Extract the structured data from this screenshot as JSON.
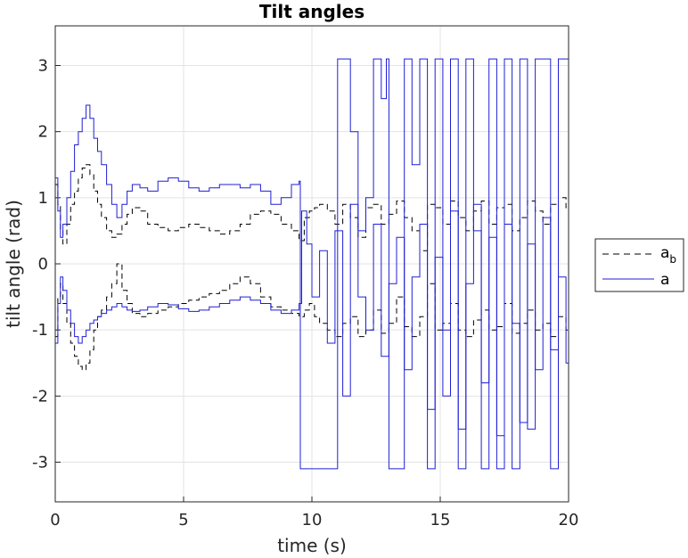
{
  "chart_data": {
    "type": "line",
    "title": "Tilt angles",
    "xlabel": "time (s)",
    "ylabel": "tilt angle (rad)",
    "xlim": [
      0,
      20
    ],
    "ylim": [
      -3.6,
      3.6
    ],
    "xticks": [
      0,
      5,
      10,
      15,
      20
    ],
    "yticks": [
      -3,
      -2,
      -1,
      0,
      1,
      2,
      3
    ],
    "xtick_labels": [
      "0",
      "5",
      "10",
      "15",
      "20"
    ],
    "ytick_labels": [
      "-3",
      "-2",
      "-1",
      "0",
      "1",
      "2",
      "3"
    ],
    "grid": true,
    "legend_position": "right",
    "legend": [
      {
        "label": "a",
        "subscript": "b",
        "style": "dashed",
        "color": "#000000"
      },
      {
        "label": "a",
        "subscript": "",
        "style": "solid",
        "color": "#1f1fd6"
      }
    ],
    "series": [
      {
        "name": "a_b (upper)",
        "style": "dashed",
        "color": "#000000",
        "x": [
          0,
          0.1,
          0.2,
          0.3,
          0.45,
          0.6,
          0.75,
          0.9,
          1.05,
          1.2,
          1.35,
          1.5,
          1.65,
          1.8,
          2.0,
          2.2,
          2.4,
          2.6,
          2.8,
          3.0,
          3.3,
          3.6,
          4.0,
          4.4,
          4.8,
          5.2,
          5.6,
          6.0,
          6.4,
          6.8,
          7.2,
          7.6,
          8.0,
          8.4,
          8.8,
          9.2,
          9.5,
          9.7,
          9.9,
          10.1,
          10.3,
          10.6,
          10.9,
          11.2,
          11.5,
          11.8,
          12.1,
          12.4,
          12.7,
          13.0,
          13.3,
          13.6,
          13.9,
          14.2,
          14.5,
          14.8,
          15.1,
          15.4,
          15.7,
          16.0,
          16.3,
          16.6,
          16.9,
          17.2,
          17.5,
          17.8,
          18.1,
          18.4,
          18.7,
          19.0,
          19.3,
          19.6,
          19.9,
          20.0
        ],
        "y": [
          1.2,
          0.9,
          0.5,
          0.3,
          0.6,
          0.9,
          1.1,
          1.3,
          1.45,
          1.5,
          1.35,
          1.1,
          0.9,
          0.7,
          0.5,
          0.4,
          0.45,
          0.6,
          0.75,
          0.85,
          0.8,
          0.6,
          0.55,
          0.5,
          0.55,
          0.6,
          0.55,
          0.5,
          0.45,
          0.5,
          0.6,
          0.75,
          0.8,
          0.75,
          0.6,
          0.5,
          0.35,
          0.7,
          0.8,
          0.85,
          0.9,
          0.8,
          0.6,
          0.9,
          0.7,
          0.4,
          0.85,
          0.9,
          0.6,
          0.75,
          0.95,
          0.7,
          0.5,
          0.2,
          0.9,
          0.85,
          0.6,
          0.95,
          0.7,
          0.5,
          0.8,
          0.95,
          0.6,
          0.85,
          0.9,
          0.5,
          0.7,
          0.95,
          0.8,
          0.6,
          0.9,
          1.0,
          0.85,
          0.9
        ]
      },
      {
        "name": "a_b (lower)",
        "style": "dashed",
        "color": "#000000",
        "x": [
          0,
          0.1,
          0.2,
          0.3,
          0.45,
          0.6,
          0.75,
          0.9,
          1.05,
          1.2,
          1.35,
          1.5,
          1.65,
          1.8,
          2.0,
          2.2,
          2.4,
          2.6,
          2.8,
          3.0,
          3.3,
          3.6,
          4.0,
          4.4,
          4.8,
          5.2,
          5.6,
          6.0,
          6.4,
          6.8,
          7.2,
          7.6,
          8.0,
          8.4,
          8.8,
          9.2,
          9.5,
          9.7,
          9.9,
          10.1,
          10.3,
          10.6,
          10.9,
          11.2,
          11.5,
          11.8,
          12.1,
          12.4,
          12.7,
          13.0,
          13.3,
          13.6,
          13.9,
          14.2,
          14.5,
          14.8,
          15.1,
          15.4,
          15.7,
          16.0,
          16.3,
          16.6,
          16.9,
          17.2,
          17.5,
          17.8,
          18.1,
          18.4,
          18.7,
          19.0,
          19.3,
          19.6,
          19.9,
          20.0
        ],
        "y": [
          -1.1,
          -0.5,
          -0.3,
          -0.6,
          -0.9,
          -1.2,
          -1.4,
          -1.55,
          -1.6,
          -1.5,
          -1.3,
          -1.0,
          -0.8,
          -0.7,
          -0.5,
          -0.3,
          0.0,
          -0.4,
          -0.6,
          -0.75,
          -0.8,
          -0.75,
          -0.7,
          -0.65,
          -0.6,
          -0.55,
          -0.5,
          -0.45,
          -0.4,
          -0.3,
          -0.2,
          -0.3,
          -0.5,
          -0.65,
          -0.7,
          -0.75,
          -0.8,
          -0.7,
          -0.6,
          -0.8,
          -0.9,
          -1.0,
          -1.1,
          -0.9,
          -0.8,
          -1.1,
          -1.0,
          -0.7,
          -1.05,
          -0.9,
          -0.5,
          -0.95,
          -1.1,
          -0.8,
          -0.3,
          -1.0,
          -0.9,
          -0.6,
          -1.0,
          -1.1,
          -0.85,
          -0.7,
          -1.0,
          -0.95,
          -0.6,
          -1.05,
          -0.9,
          -0.7,
          -1.0,
          -0.9,
          -1.1,
          -0.8,
          -1.0,
          -1.1
        ]
      },
      {
        "name": "a (upper)",
        "style": "solid",
        "color": "#1f1fd6",
        "x": [
          0,
          0.1,
          0.2,
          0.3,
          0.45,
          0.6,
          0.75,
          0.9,
          1.05,
          1.2,
          1.35,
          1.5,
          1.65,
          1.8,
          2.0,
          2.2,
          2.4,
          2.6,
          2.8,
          3.0,
          3.3,
          3.6,
          4.0,
          4.4,
          4.8,
          5.2,
          5.6,
          6.0,
          6.4,
          6.8,
          7.2,
          7.6,
          8.0,
          8.4,
          8.8,
          9.2,
          9.5,
          9.55,
          9.6,
          10.0,
          10.5,
          10.9,
          11.0,
          11.05,
          11.3,
          11.5,
          11.8,
          12.1,
          12.4,
          12.7,
          12.9,
          13.0,
          13.3,
          13.6,
          13.9,
          14.2,
          14.5,
          14.8,
          15.1,
          15.4,
          15.7,
          16.0,
          16.3,
          16.6,
          16.9,
          17.2,
          17.5,
          17.8,
          18.1,
          18.4,
          18.7,
          19.0,
          19.3,
          19.6,
          19.9,
          20.0
        ],
        "y": [
          1.3,
          0.8,
          0.4,
          0.6,
          1.0,
          1.4,
          1.8,
          2.0,
          2.2,
          2.4,
          2.2,
          1.9,
          1.7,
          1.5,
          1.2,
          0.9,
          0.7,
          0.9,
          1.1,
          1.2,
          1.15,
          1.1,
          1.25,
          1.3,
          1.25,
          1.15,
          1.1,
          1.15,
          1.2,
          1.2,
          1.15,
          1.2,
          1.1,
          0.9,
          1.0,
          1.2,
          1.25,
          -3.1,
          -3.1,
          -3.1,
          -3.1,
          -3.1,
          3.1,
          3.1,
          3.1,
          2.0,
          0.5,
          1.0,
          3.1,
          2.5,
          3.1,
          -3.1,
          -3.1,
          3.1,
          1.5,
          3.1,
          -3.1,
          3.1,
          -2.0,
          3.1,
          -3.1,
          3.1,
          0.5,
          -3.1,
          3.1,
          -3.1,
          3.1,
          -3.1,
          3.1,
          -2.5,
          3.1,
          3.1,
          -3.1,
          3.1,
          3.1,
          -3.1
        ]
      },
      {
        "name": "a (lower)",
        "style": "solid",
        "color": "#1f1fd6",
        "x": [
          0,
          0.1,
          0.2,
          0.3,
          0.45,
          0.6,
          0.75,
          0.9,
          1.05,
          1.2,
          1.35,
          1.5,
          1.65,
          1.8,
          2.0,
          2.2,
          2.4,
          2.6,
          2.8,
          3.0,
          3.3,
          3.6,
          4.0,
          4.4,
          4.8,
          5.2,
          5.6,
          6.0,
          6.4,
          6.8,
          7.2,
          7.6,
          8.0,
          8.4,
          8.8,
          9.2,
          9.5,
          9.6,
          9.8,
          10.0,
          10.3,
          10.6,
          10.9,
          11.2,
          11.5,
          11.8,
          12.1,
          12.4,
          12.7,
          13.0,
          13.3,
          13.6,
          13.9,
          14.2,
          14.5,
          14.8,
          15.1,
          15.4,
          15.7,
          16.0,
          16.3,
          16.6,
          16.9,
          17.2,
          17.5,
          17.8,
          18.1,
          18.4,
          18.7,
          19.0,
          19.3,
          19.6,
          19.9,
          20.0
        ],
        "y": [
          -1.2,
          -0.6,
          -0.2,
          -0.4,
          -0.7,
          -0.9,
          -1.1,
          -1.2,
          -1.1,
          -1.0,
          -0.9,
          -0.85,
          -0.8,
          -0.75,
          -0.7,
          -0.65,
          -0.6,
          -0.65,
          -0.7,
          -0.72,
          -0.7,
          -0.65,
          -0.6,
          -0.62,
          -0.68,
          -0.72,
          -0.7,
          -0.65,
          -0.6,
          -0.55,
          -0.5,
          -0.55,
          -0.6,
          -0.7,
          -0.75,
          -0.7,
          -0.6,
          0.8,
          0.3,
          -0.5,
          0.2,
          -1.2,
          0.5,
          -2.0,
          0.9,
          -0.5,
          -1.0,
          0.6,
          -1.4,
          -0.3,
          0.4,
          -1.6,
          -0.2,
          0.6,
          -2.2,
          0.1,
          -1.0,
          0.8,
          -2.5,
          -0.3,
          0.9,
          -1.8,
          0.4,
          -2.6,
          0.6,
          -0.9,
          -2.4,
          0.3,
          -1.6,
          0.7,
          -1.3,
          -0.2,
          -1.5,
          -0.5
        ]
      }
    ]
  }
}
